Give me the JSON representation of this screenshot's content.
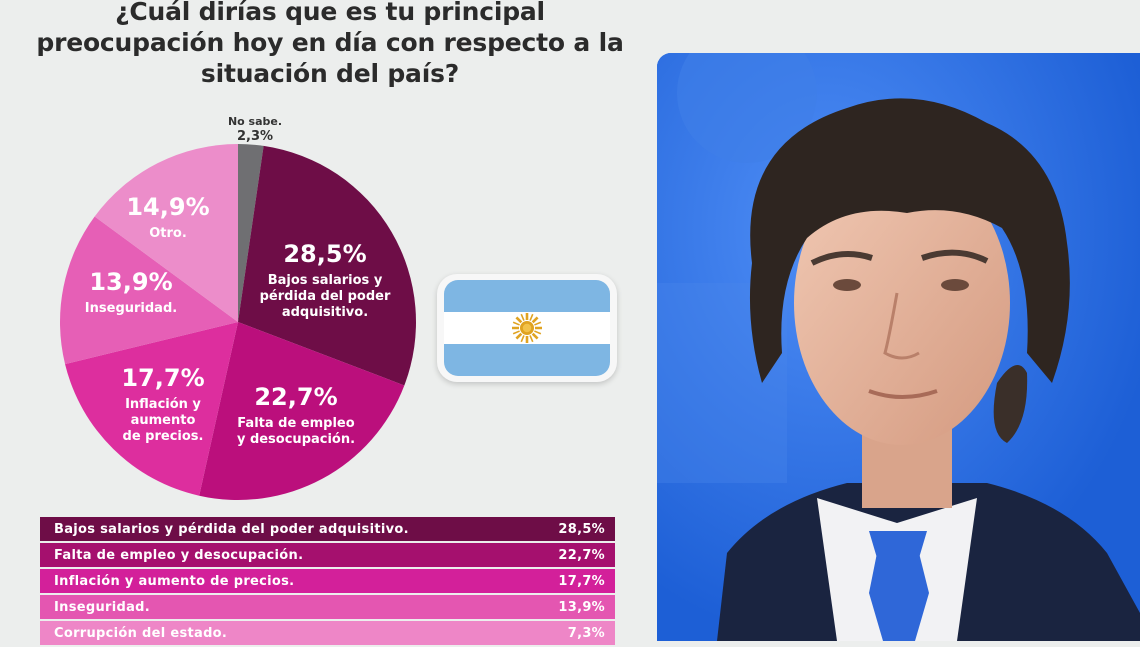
{
  "header": {
    "title_lines": [
      "¿Cuál dirías que es tu principal",
      "preocupación hoy en día con respecto a la",
      "situación del país?"
    ]
  },
  "chart_data": {
    "type": "pie",
    "title": "¿Cuál dirías que es tu principal preocupación hoy en día con respecto a la situación del país?",
    "start_angle_deg": 0,
    "slices": [
      {
        "value": 2.3,
        "value_label": "2,3%",
        "label_lines": [
          "No sabe."
        ],
        "color": "#6f6f72"
      },
      {
        "value": 28.5,
        "value_label": "28,5%",
        "label_lines": [
          "Bajos salarios y",
          "pérdida del poder",
          "adquisitivo."
        ],
        "color": "#6e0d47"
      },
      {
        "value": 22.7,
        "value_label": "22,7%",
        "label_lines": [
          "Falta de empleo",
          "y desocupación."
        ],
        "color": "#bb0f7c"
      },
      {
        "value": 17.7,
        "value_label": "17,7%",
        "label_lines": [
          "Inflación y",
          "aumento",
          "de precios."
        ],
        "color": "#dd2e9e"
      },
      {
        "value": 13.9,
        "value_label": "13,9%",
        "label_lines": [
          "Inseguridad."
        ],
        "color": "#e65fb6"
      },
      {
        "value": 14.9,
        "value_label": "14,9%",
        "label_lines": [
          "Otro."
        ],
        "color": "#ec8dca"
      }
    ]
  },
  "table": {
    "rows": [
      {
        "label": "Bajos salarios y pérdida del poder adquisitivo.",
        "value": "28,5%",
        "color": "#6e0d47"
      },
      {
        "label": "Falta de empleo y desocupación.",
        "value": "22,7%",
        "color": "#a5106e"
      },
      {
        "label": "Inflación y aumento de precios.",
        "value": "17,7%",
        "color": "#d3209a"
      },
      {
        "label": "Inseguridad.",
        "value": "13,9%",
        "color": "#e456b1"
      },
      {
        "label": "Corrupción del estado.",
        "value": "7,3%",
        "color": "#ee86c7"
      }
    ]
  },
  "flag": {
    "icon": "argentina-flag-icon",
    "colors": {
      "celeste": "#7eb6e3",
      "white": "#ffffff",
      "sun": "#e0a321"
    }
  },
  "photo": {
    "icon": "portrait-photo"
  }
}
